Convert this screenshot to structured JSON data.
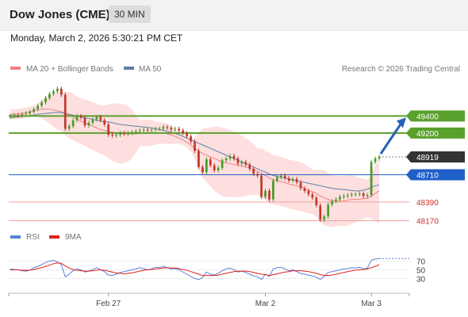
{
  "header": {
    "title": "Dow Jones (CME)",
    "timeframe": "30 MIN"
  },
  "datetime": "Monday, March 2, 2026 5:30:21 PM CET",
  "legend": {
    "ma20": "MA 20 + Bollinger Bands",
    "ma50": "MA 50",
    "copyright": "Research © 2026 Trading Central"
  },
  "rsi_legend": {
    "rsi": "RSI",
    "ma9": "9MA"
  },
  "colors": {
    "up": "#4a9a2a",
    "down": "#c0392b",
    "ma20": "#f08080",
    "ma50": "#5f7fa8",
    "bband": "#fdd9d9",
    "resistance": "#5aa02c",
    "support_blue": "#1f5fc8",
    "support_red": "#f5a0a0",
    "current": "#333333",
    "arrow": "#2462b8",
    "rsi": "#5b7fd4",
    "ma9": "#e02020"
  },
  "chart_data": {
    "type": "candlestick",
    "price_ylim": [
      48100,
      49850
    ],
    "levels": [
      {
        "label": "49400",
        "value": 49400,
        "kind": "resistance"
      },
      {
        "label": "49200",
        "value": 49200,
        "kind": "resistance"
      },
      {
        "label": "48919",
        "value": 48919,
        "kind": "current"
      },
      {
        "label": "48710",
        "value": 48710,
        "kind": "support_blue"
      },
      {
        "label": "48390",
        "value": 48390,
        "kind": "support_red"
      },
      {
        "label": "48170",
        "value": 48170,
        "kind": "support_red"
      }
    ],
    "x_ticks": [
      {
        "label": "Feb 27",
        "index": 25
      },
      {
        "label": "Mar 2",
        "index": 65
      },
      {
        "label": "Mar 3",
        "index": 92
      }
    ],
    "closes": [
      49400,
      49410,
      49405,
      49420,
      49430,
      49450,
      49480,
      49520,
      49560,
      49610,
      49660,
      49690,
      49720,
      49650,
      49250,
      49280,
      49350,
      49400,
      49380,
      49290,
      49320,
      49360,
      49390,
      49350,
      49300,
      49180,
      49170,
      49180,
      49200,
      49190,
      49200,
      49210,
      49220,
      49230,
      49240,
      49230,
      49240,
      49250,
      49250,
      49270,
      49260,
      49240,
      49250,
      49230,
      49200,
      49160,
      49100,
      48990,
      48800,
      48740,
      48890,
      48820,
      48760,
      48790,
      48880,
      48900,
      48930,
      48900,
      48840,
      48860,
      48830,
      48780,
      48720,
      48700,
      48450,
      48520,
      48420,
      48640,
      48680,
      48700,
      48670,
      48640,
      48660,
      48620,
      48550,
      48520,
      48480,
      48440,
      48350,
      48180,
      48220,
      48360,
      48400,
      48420,
      48450,
      48460,
      48470,
      48480,
      48480,
      48490,
      48460,
      48470,
      48860,
      48900,
      48919
    ],
    "ma20": [
      49420,
      49420,
      49425,
      49430,
      49440,
      49450,
      49460,
      49470,
      49480,
      49480,
      49480,
      49470,
      49460,
      49450,
      49430,
      49410,
      49390,
      49360,
      49340,
      49320,
      49300,
      49280,
      49260,
      49240,
      49230,
      49220,
      49210,
      49200,
      49190,
      49190,
      49190,
      49190,
      49190,
      49195,
      49200,
      49200,
      49200,
      49200,
      49200,
      49200,
      49190,
      49180,
      49160,
      49140,
      49120,
      49090,
      49060,
      49020,
      48990,
      48960,
      48940,
      48920,
      48900,
      48880,
      48860,
      48850,
      48840,
      48830,
      48820,
      48810,
      48800,
      48790,
      48770,
      48750,
      48730,
      48700,
      48670,
      48650,
      48640,
      48630,
      48620,
      48600,
      48590,
      48580,
      48570,
      48550,
      48530,
      48510,
      48490,
      48460,
      48440,
      48420,
      48400,
      48400,
      48400,
      48400,
      48410,
      48420,
      48420,
      48420,
      48430,
      48430,
      48460,
      48490,
      48520
    ],
    "ma50": [
      49380,
      49385,
      49390,
      49395,
      49400,
      49405,
      49410,
      49420,
      49425,
      49430,
      49435,
      49440,
      49440,
      49440,
      49430,
      49420,
      49410,
      49400,
      49390,
      49380,
      49370,
      49360,
      49350,
      49340,
      49335,
      49330,
      49320,
      49310,
      49300,
      49295,
      49290,
      49285,
      49280,
      49275,
      49270,
      49265,
      49260,
      49250,
      49240,
      49230,
      49220,
      49210,
      49195,
      49180,
      49160,
      49140,
      49120,
      49100,
      49080,
      49060,
      49040,
      49020,
      49000,
      48980,
      48960,
      48940,
      48920,
      48900,
      48880,
      48860,
      48840,
      48820,
      48800,
      48780,
      48760,
      48740,
      48720,
      48700,
      48690,
      48680,
      48670,
      48660,
      48650,
      48640,
      48630,
      48620,
      48610,
      48600,
      48590,
      48580,
      48570,
      48560,
      48550,
      48545,
      48540,
      48535,
      48530,
      48525,
      48520,
      48520,
      48530,
      48540,
      48560,
      48580,
      48590
    ],
    "rsi": [
      52,
      51,
      50,
      48,
      47,
      49,
      55,
      58,
      62,
      67,
      70,
      72,
      68,
      62,
      34,
      40,
      48,
      52,
      50,
      45,
      47,
      51,
      55,
      50,
      46,
      38,
      37,
      40,
      44,
      46,
      48,
      50,
      52,
      55,
      53,
      50,
      52,
      56,
      55,
      58,
      55,
      52,
      53,
      50,
      45,
      40,
      35,
      30,
      28,
      32,
      45,
      40,
      38,
      42,
      48,
      52,
      54,
      50,
      45,
      47,
      44,
      40,
      36,
      34,
      28,
      40,
      35,
      52,
      55,
      56,
      52,
      48,
      50,
      46,
      42,
      40,
      38,
      36,
      33,
      28,
      35,
      44,
      46,
      48,
      50,
      52,
      53,
      55,
      54,
      56,
      52,
      54,
      72,
      75,
      76
    ],
    "ma9": [
      50,
      50,
      50,
      49,
      49,
      49,
      51,
      53,
      55,
      58,
      61,
      64,
      66,
      65,
      59,
      54,
      51,
      49,
      48,
      47,
      47,
      48,
      49,
      50,
      49,
      47,
      45,
      43,
      42,
      41,
      42,
      43,
      45,
      47,
      49,
      50,
      51,
      52,
      53,
      54,
      55,
      54,
      54,
      53,
      51,
      49,
      46,
      43,
      40,
      37,
      37,
      37,
      37,
      38,
      40,
      42,
      44,
      46,
      47,
      47,
      47,
      46,
      44,
      42,
      40,
      39,
      37,
      39,
      41,
      43,
      45,
      46,
      48,
      48,
      48,
      47,
      46,
      44,
      42,
      39,
      37,
      37,
      38,
      40,
      42,
      44,
      46,
      48,
      49,
      50,
      51,
      52,
      55,
      58,
      62
    ],
    "rsi_ticks": [
      {
        "label": "70",
        "value": 70
      },
      {
        "label": "50",
        "value": 50
      },
      {
        "label": "30",
        "value": 30
      }
    ]
  }
}
